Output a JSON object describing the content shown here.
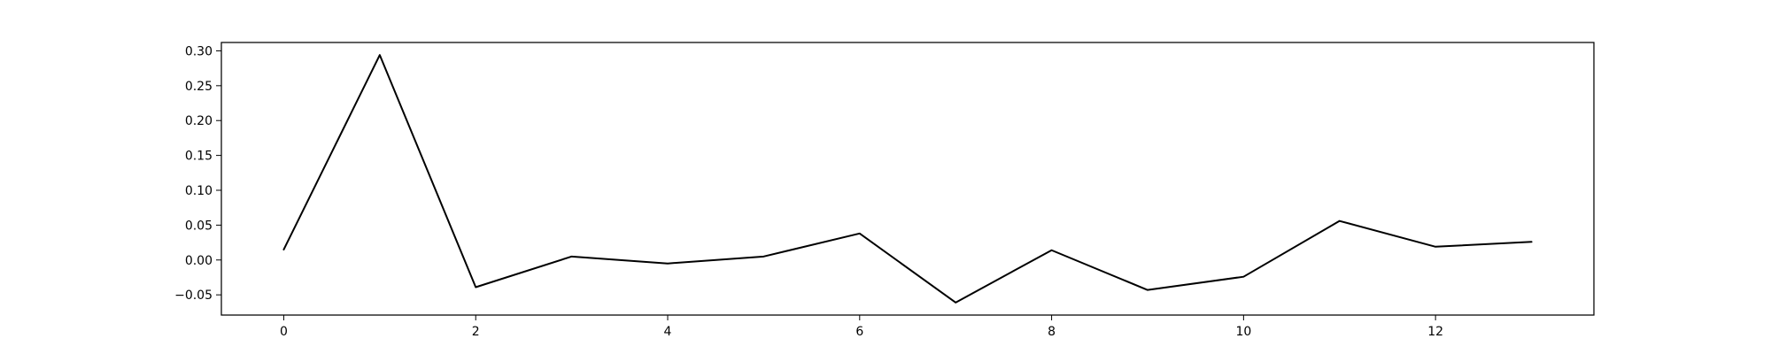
{
  "colors": {
    "line": "#000000",
    "frame": "#000000",
    "background": "#ffffff"
  },
  "chart_data": {
    "type": "line",
    "title": "",
    "xlabel": "",
    "ylabel": "",
    "grid": false,
    "x": [
      0,
      1,
      2,
      3,
      4,
      5,
      6,
      7,
      8,
      9,
      10,
      11,
      12,
      13
    ],
    "series": [
      {
        "values": [
          0.015,
          0.294,
          -0.039,
          0.005,
          -0.005,
          0.005,
          0.038,
          -0.061,
          0.014,
          -0.043,
          -0.024,
          0.056,
          0.019,
          0.026
        ]
      }
    ],
    "xlim": [
      -0.65,
      13.65
    ],
    "ylim": [
      -0.079,
      0.312
    ],
    "xticks": [
      0,
      2,
      4,
      6,
      8,
      10,
      12
    ],
    "xtick_labels": [
      "0",
      "2",
      "4",
      "6",
      "8",
      "10",
      "12"
    ],
    "yticks": [
      -0.05,
      0.0,
      0.05,
      0.1,
      0.15,
      0.2,
      0.25,
      0.3
    ],
    "ytick_labels": [
      "−0.05",
      "0.00",
      "0.05",
      "0.10",
      "0.15",
      "0.20",
      "0.25",
      "0.30"
    ]
  }
}
